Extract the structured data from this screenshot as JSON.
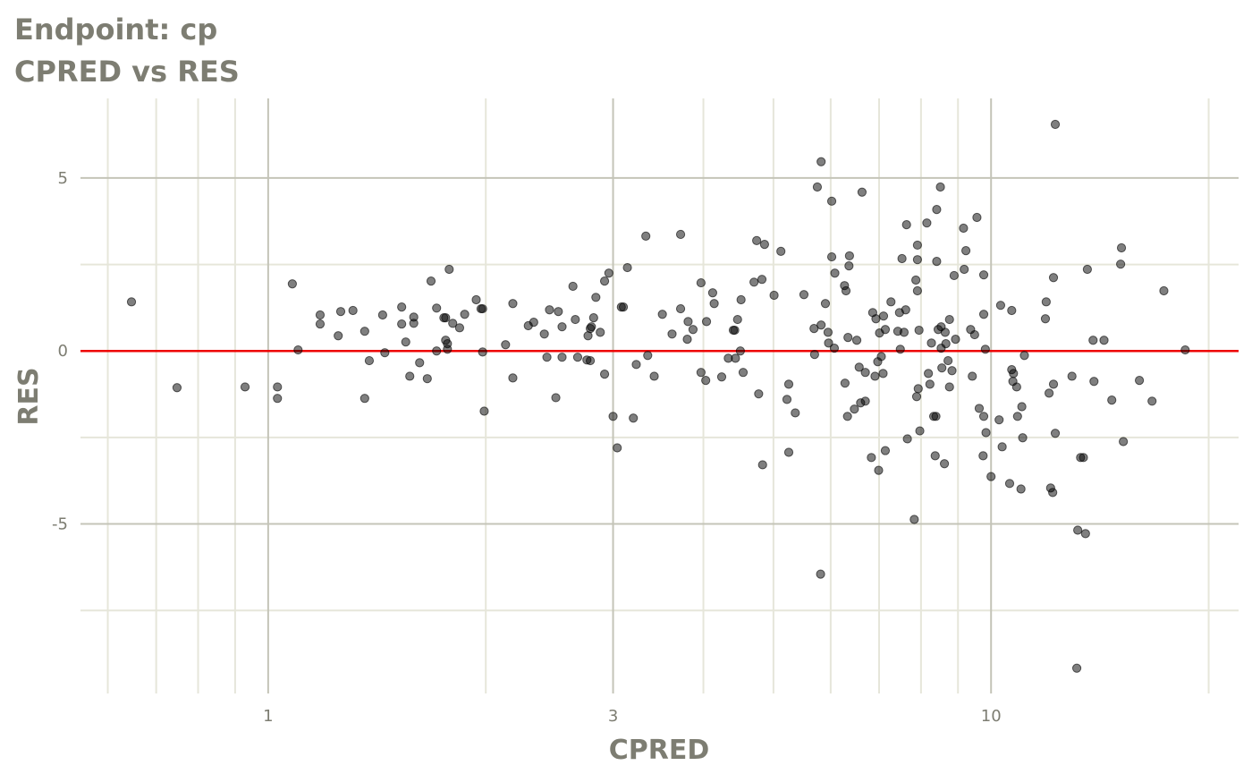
{
  "chart_data": {
    "type": "scatter",
    "title": "Endpoint:  cp",
    "subtitle": "CPRED vs RES",
    "xlabel": "CPRED",
    "ylabel": "RES",
    "xscale": "log10",
    "xlim": [
      0.55,
      22
    ],
    "ylim": [
      -9.9,
      7.3
    ],
    "x_ticks": [
      1,
      3,
      10
    ],
    "x_tick_labels": [
      "1",
      "3",
      "10"
    ],
    "x_minor_grid": [
      0.6,
      0.7,
      0.8,
      0.9,
      2,
      4,
      5,
      6,
      7,
      8,
      9,
      20
    ],
    "y_ticks": [
      5,
      0,
      -5
    ],
    "y_tick_labels": [
      "5",
      "0",
      "-5"
    ],
    "y_minor_grid": [
      2.5,
      -2.5,
      -7.5
    ],
    "grid": true,
    "reference_line": {
      "y": 0,
      "color": "#ee0000"
    },
    "point_color": "#000000",
    "point_alpha": 0.5,
    "points": [
      [
        0.647,
        1.42
      ],
      [
        0.748,
        -1.06
      ],
      [
        0.929,
        -1.04
      ],
      [
        1.03,
        -1.04
      ],
      [
        1.03,
        -1.37
      ],
      [
        1.08,
        1.94
      ],
      [
        1.1,
        0.03
      ],
      [
        1.18,
        1.04
      ],
      [
        1.18,
        0.78
      ],
      [
        1.25,
        0.44
      ],
      [
        1.26,
        1.14
      ],
      [
        1.31,
        1.17
      ],
      [
        1.36,
        0.57
      ],
      [
        1.36,
        -1.37
      ],
      [
        1.38,
        -0.28
      ],
      [
        1.44,
        1.04
      ],
      [
        1.45,
        -0.05
      ],
      [
        1.53,
        1.27
      ],
      [
        1.53,
        0.78
      ],
      [
        1.55,
        0.26
      ],
      [
        1.57,
        -0.73
      ],
      [
        1.59,
        0.98
      ],
      [
        1.59,
        0.8
      ],
      [
        1.62,
        -0.34
      ],
      [
        1.66,
        -0.8
      ],
      [
        1.68,
        2.02
      ],
      [
        1.71,
        1.24
      ],
      [
        1.71,
        0.0
      ],
      [
        1.75,
        0.96
      ],
      [
        1.76,
        0.96
      ],
      [
        1.76,
        0.31
      ],
      [
        1.77,
        0.21
      ],
      [
        1.77,
        0.05
      ],
      [
        1.78,
        2.36
      ],
      [
        1.8,
        0.8
      ],
      [
        1.84,
        0.67
      ],
      [
        1.87,
        1.06
      ],
      [
        1.94,
        1.48
      ],
      [
        1.97,
        1.22
      ],
      [
        1.98,
        1.22
      ],
      [
        1.98,
        -0.03
      ],
      [
        1.99,
        -1.74
      ],
      [
        2.13,
        0.18
      ],
      [
        2.18,
        -0.78
      ],
      [
        2.18,
        1.37
      ],
      [
        2.29,
        0.73
      ],
      [
        2.33,
        0.83
      ],
      [
        2.41,
        0.49
      ],
      [
        2.43,
        -0.18
      ],
      [
        2.45,
        1.19
      ],
      [
        2.5,
        -1.35
      ],
      [
        2.52,
        1.14
      ],
      [
        2.55,
        -0.18
      ],
      [
        2.55,
        0.7
      ],
      [
        2.64,
        1.87
      ],
      [
        2.66,
        0.91
      ],
      [
        2.68,
        -0.18
      ],
      [
        2.76,
        -0.26
      ],
      [
        2.77,
        0.44
      ],
      [
        2.79,
        -0.28
      ],
      [
        2.79,
        0.65
      ],
      [
        2.8,
        0.7
      ],
      [
        2.82,
        0.96
      ],
      [
        2.84,
        1.55
      ],
      [
        2.88,
        0.54
      ],
      [
        2.92,
        2.02
      ],
      [
        2.92,
        -0.67
      ],
      [
        2.96,
        2.25
      ],
      [
        3.0,
        -1.89
      ],
      [
        3.04,
        -2.8
      ],
      [
        3.08,
        1.27
      ],
      [
        3.1,
        1.27
      ],
      [
        3.14,
        2.41
      ],
      [
        3.2,
        -1.94
      ],
      [
        3.23,
        -0.39
      ],
      [
        3.33,
        3.32
      ],
      [
        3.35,
        -0.13
      ],
      [
        3.42,
        -0.73
      ],
      [
        3.51,
        1.06
      ],
      [
        3.62,
        0.49
      ],
      [
        3.72,
        3.37
      ],
      [
        3.72,
        1.22
      ],
      [
        3.8,
        0.34
      ],
      [
        3.81,
        0.85
      ],
      [
        3.87,
        0.62
      ],
      [
        3.97,
        1.97
      ],
      [
        3.97,
        -0.62
      ],
      [
        4.03,
        -0.85
      ],
      [
        4.04,
        0.85
      ],
      [
        4.12,
        1.68
      ],
      [
        4.14,
        1.37
      ],
      [
        4.24,
        -0.75
      ],
      [
        4.33,
        -0.21
      ],
      [
        4.4,
        0.6
      ],
      [
        4.42,
        0.6
      ],
      [
        4.43,
        -0.21
      ],
      [
        4.46,
        0.91
      ],
      [
        4.5,
        0.0
      ],
      [
        4.51,
        1.48
      ],
      [
        4.54,
        -0.62
      ],
      [
        4.7,
        1.99
      ],
      [
        4.74,
        3.19
      ],
      [
        4.77,
        -1.24
      ],
      [
        4.82,
        2.07
      ],
      [
        4.83,
        -3.29
      ],
      [
        4.86,
        3.08
      ],
      [
        5.01,
        1.61
      ],
      [
        5.12,
        2.88
      ],
      [
        5.22,
        -1.4
      ],
      [
        5.25,
        -0.96
      ],
      [
        5.25,
        -2.93
      ],
      [
        5.36,
        -1.79
      ],
      [
        5.51,
        1.63
      ],
      [
        5.69,
        0.65
      ],
      [
        5.7,
        -0.1
      ],
      [
        5.75,
        4.74
      ],
      [
        5.82,
        5.47
      ],
      [
        5.82,
        0.75
      ],
      [
        5.81,
        -6.45
      ],
      [
        5.9,
        1.37
      ],
      [
        5.95,
        0.54
      ],
      [
        5.96,
        0.23
      ],
      [
        6.02,
        2.72
      ],
      [
        6.02,
        4.33
      ],
      [
        6.07,
        0.08
      ],
      [
        6.08,
        2.25
      ],
      [
        6.27,
        1.89
      ],
      [
        6.28,
        -0.93
      ],
      [
        6.3,
        1.74
      ],
      [
        6.33,
        -1.89
      ],
      [
        6.34,
        0.39
      ],
      [
        6.36,
        2.46
      ],
      [
        6.37,
        2.75
      ],
      [
        6.47,
        -1.68
      ],
      [
        6.52,
        0.31
      ],
      [
        6.57,
        -0.47
      ],
      [
        6.6,
        -1.5
      ],
      [
        6.63,
        4.59
      ],
      [
        6.7,
        -1.45
      ],
      [
        6.7,
        -0.62
      ],
      [
        6.83,
        -3.08
      ],
      [
        6.86,
        1.11
      ],
      [
        6.91,
        -0.73
      ],
      [
        6.93,
        0.93
      ],
      [
        6.97,
        -0.31
      ],
      [
        6.99,
        -3.45
      ],
      [
        7.01,
        0.52
      ],
      [
        7.05,
        -0.16
      ],
      [
        7.09,
        -0.65
      ],
      [
        7.1,
        1.01
      ],
      [
        7.14,
        -2.88
      ],
      [
        7.14,
        0.62
      ],
      [
        7.27,
        1.42
      ],
      [
        7.43,
        0.57
      ],
      [
        7.47,
        1.11
      ],
      [
        7.49,
        0.05
      ],
      [
        7.53,
        2.67
      ],
      [
        7.58,
        0.54
      ],
      [
        7.62,
        1.19
      ],
      [
        7.64,
        3.65
      ],
      [
        7.66,
        -2.54
      ],
      [
        7.83,
        -4.87
      ],
      [
        7.87,
        2.05
      ],
      [
        7.89,
        -1.32
      ],
      [
        7.91,
        3.06
      ],
      [
        7.91,
        2.64
      ],
      [
        7.91,
        1.74
      ],
      [
        7.93,
        -1.09
      ],
      [
        7.95,
        0.6
      ],
      [
        7.97,
        -2.31
      ],
      [
        8.15,
        3.7
      ],
      [
        8.19,
        -0.65
      ],
      [
        8.23,
        -0.96
      ],
      [
        8.27,
        0.23
      ],
      [
        8.33,
        -1.89
      ],
      [
        8.37,
        -3.03
      ],
      [
        8.39,
        -1.89
      ],
      [
        8.41,
        2.59
      ],
      [
        8.41,
        4.09
      ],
      [
        8.45,
        0.62
      ],
      [
        8.51,
        4.74
      ],
      [
        8.53,
        0.7
      ],
      [
        8.53,
        0.08
      ],
      [
        8.55,
        -0.49
      ],
      [
        8.62,
        -3.26
      ],
      [
        8.64,
        0.54
      ],
      [
        8.66,
        0.21
      ],
      [
        8.72,
        -0.28
      ],
      [
        8.76,
        0.91
      ],
      [
        8.76,
        -1.04
      ],
      [
        8.83,
        -0.57
      ],
      [
        8.89,
        2.18
      ],
      [
        8.93,
        0.34
      ],
      [
        9.16,
        3.55
      ],
      [
        9.18,
        2.36
      ],
      [
        9.23,
        2.9
      ],
      [
        9.37,
        0.62
      ],
      [
        9.42,
        -0.73
      ],
      [
        9.49,
        0.47
      ],
      [
        9.56,
        3.86
      ],
      [
        9.63,
        -1.66
      ],
      [
        9.75,
        -3.03
      ],
      [
        9.77,
        2.2
      ],
      [
        9.77,
        -1.89
      ],
      [
        9.77,
        1.06
      ],
      [
        9.82,
        0.05
      ],
      [
        9.84,
        -2.36
      ],
      [
        10.0,
        -3.63
      ],
      [
        10.26,
        -1.99
      ],
      [
        10.31,
        1.32
      ],
      [
        10.36,
        -2.77
      ],
      [
        10.61,
        -3.83
      ],
      [
        10.68,
        -0.54
      ],
      [
        10.68,
        1.17
      ],
      [
        10.72,
        -0.88
      ],
      [
        10.74,
        -0.65
      ],
      [
        10.85,
        -1.04
      ],
      [
        10.88,
        -1.89
      ],
      [
        11.0,
        -3.99
      ],
      [
        11.03,
        -1.61
      ],
      [
        11.06,
        -2.51
      ],
      [
        11.12,
        -0.13
      ],
      [
        11.89,
        0.93
      ],
      [
        11.92,
        1.42
      ],
      [
        12.03,
        -1.22
      ],
      [
        12.09,
        -3.96
      ],
      [
        12.17,
        -4.09
      ],
      [
        12.2,
        2.12
      ],
      [
        12.2,
        -0.96
      ],
      [
        12.27,
        6.55
      ],
      [
        12.27,
        -2.38
      ],
      [
        12.94,
        -0.73
      ],
      [
        13.14,
        -9.17
      ],
      [
        13.18,
        -5.18
      ],
      [
        13.3,
        -3.08
      ],
      [
        13.42,
        -3.08
      ],
      [
        13.51,
        -5.28
      ],
      [
        13.59,
        2.36
      ],
      [
        13.84,
        0.31
      ],
      [
        13.88,
        -0.88
      ],
      [
        14.33,
        0.31
      ],
      [
        14.69,
        -1.42
      ],
      [
        15.11,
        2.51
      ],
      [
        15.15,
        2.98
      ],
      [
        15.24,
        -2.62
      ],
      [
        16.04,
        -0.85
      ],
      [
        16.7,
        -1.45
      ],
      [
        17.34,
        1.74
      ],
      [
        18.56,
        0.03
      ]
    ]
  }
}
